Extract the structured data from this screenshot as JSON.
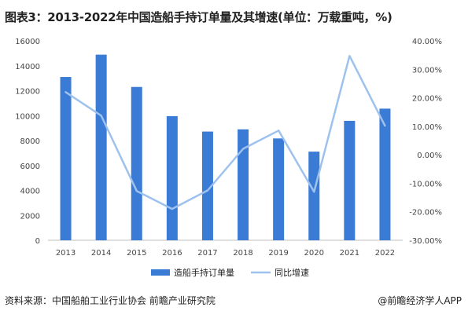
{
  "header": {
    "title": "图表3：2013-2022年中国造船手持订单量及其增速(单位：万载重吨，%)"
  },
  "footer": {
    "source": "资料来源：中国船舶工业行业协会 前瞻产业研究院",
    "credit": "@前瞻经济学人APP"
  },
  "chart_data": {
    "type": "bar",
    "categories": [
      "2013",
      "2014",
      "2015",
      "2016",
      "2017",
      "2018",
      "2019",
      "2020",
      "2021",
      "2022"
    ],
    "series": [
      {
        "name": "造船手持订单量",
        "type": "bar",
        "axis": "left",
        "color": "#3a7bd5",
        "values": [
          13100,
          14890,
          12300,
          9960,
          8720,
          8900,
          8170,
          7110,
          9580,
          10560
        ]
      },
      {
        "name": "同比增速",
        "type": "line",
        "axis": "right",
        "color": "#9ec1ee",
        "values": [
          22.0,
          13.7,
          -12.7,
          -19.0,
          -12.5,
          2.1,
          8.5,
          -13.0,
          34.7,
          10.2
        ]
      }
    ],
    "y_left": {
      "min": 0,
      "max": 16000,
      "step": 2000
    },
    "y_right": {
      "min": -30,
      "max": 40,
      "step": 10,
      "format": "percent_2dp"
    },
    "legend": "bottom",
    "grid": false
  }
}
